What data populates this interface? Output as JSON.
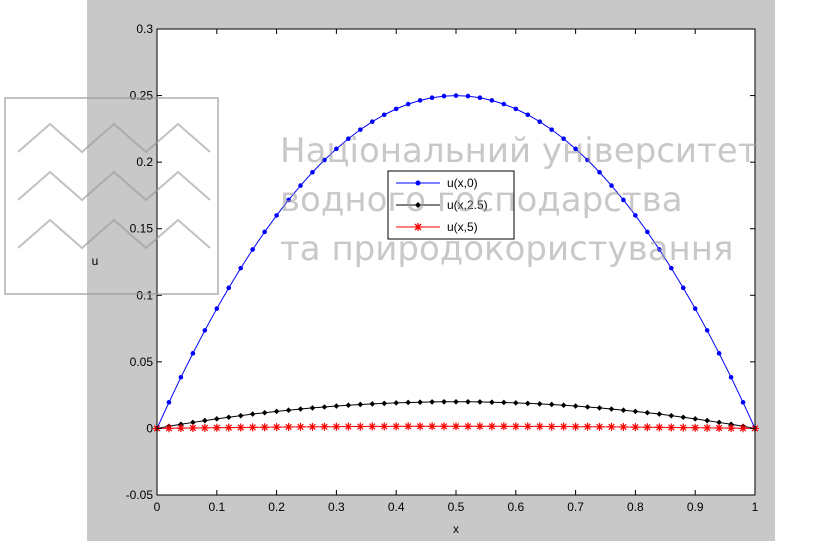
{
  "watermark": {
    "lines": [
      "Національний університет",
      "водного господарства",
      "та природокористування"
    ]
  },
  "chart_data": {
    "type": "line",
    "title": "",
    "xlabel": "x",
    "ylabel": "u",
    "xlim": [
      0,
      1
    ],
    "ylim": [
      -0.05,
      0.3
    ],
    "xticks": [
      "0",
      "0.1",
      "0.2",
      "0.3",
      "0.4",
      "0.5",
      "0.6",
      "0.7",
      "0.8",
      "0.9",
      "1"
    ],
    "yticks": [
      "-0.05",
      "0",
      "0.05",
      "0.1",
      "0.15",
      "0.2",
      "0.25",
      "0.3"
    ],
    "grid": false,
    "legend_position": "center",
    "x": [
      0,
      0.02,
      0.04,
      0.06,
      0.08,
      0.1,
      0.12,
      0.14,
      0.16,
      0.18,
      0.2,
      0.22,
      0.24,
      0.26,
      0.28,
      0.3,
      0.32,
      0.34,
      0.36,
      0.38,
      0.4,
      0.42,
      0.44,
      0.46,
      0.48,
      0.5,
      0.52,
      0.54,
      0.56,
      0.58,
      0.6,
      0.62,
      0.64,
      0.66,
      0.68,
      0.7,
      0.72,
      0.74,
      0.76,
      0.78,
      0.8,
      0.82,
      0.84,
      0.86,
      0.88,
      0.9,
      0.92,
      0.94,
      0.96,
      0.98,
      1
    ],
    "series": [
      {
        "name": "u(x,0)",
        "color": "#0000ff",
        "marker": "dot",
        "values": [
          0,
          0.0196,
          0.0384,
          0.0564,
          0.0736,
          0.09,
          0.1056,
          0.1204,
          0.1344,
          0.1476,
          0.16,
          0.1716,
          0.1824,
          0.1924,
          0.2016,
          0.21,
          0.2176,
          0.2244,
          0.2304,
          0.2356,
          0.24,
          0.2436,
          0.2464,
          0.2484,
          0.2496,
          0.25,
          0.2496,
          0.2484,
          0.2464,
          0.2436,
          0.24,
          0.2356,
          0.2304,
          0.2244,
          0.2176,
          0.21,
          0.2016,
          0.1924,
          0.1824,
          0.1716,
          0.16,
          0.1476,
          0.1344,
          0.1204,
          0.1056,
          0.09,
          0.0736,
          0.0564,
          0.0384,
          0.0196,
          0
        ]
      },
      {
        "name": "u(x,2.5)",
        "color": "#000000",
        "marker": "diamond",
        "values": [
          0,
          0.0016,
          0.0031,
          0.0045,
          0.0059,
          0.0072,
          0.0084,
          0.0096,
          0.0108,
          0.0118,
          0.0128,
          0.0137,
          0.0146,
          0.0154,
          0.0161,
          0.0168,
          0.0174,
          0.018,
          0.0184,
          0.0188,
          0.0192,
          0.0195,
          0.0197,
          0.0199,
          0.02,
          0.02,
          0.02,
          0.0199,
          0.0197,
          0.0195,
          0.0192,
          0.0188,
          0.0184,
          0.018,
          0.0174,
          0.0168,
          0.0161,
          0.0154,
          0.0146,
          0.0137,
          0.0128,
          0.0118,
          0.0108,
          0.0096,
          0.0084,
          0.0072,
          0.0059,
          0.0045,
          0.0031,
          0.0016,
          0
        ]
      },
      {
        "name": "u(x,5)",
        "color": "#ff0000",
        "marker": "asterisk",
        "values": [
          0,
          0.0001,
          0.0002,
          0.0003,
          0.0004,
          0.0005,
          0.0006,
          0.0007,
          0.0008,
          0.0009,
          0.001,
          0.0011,
          0.0012,
          0.0012,
          0.0013,
          0.0013,
          0.0014,
          0.0014,
          0.0015,
          0.0015,
          0.0015,
          0.0016,
          0.0016,
          0.0016,
          0.0016,
          0.0016,
          0.0016,
          0.0016,
          0.0016,
          0.0016,
          0.0015,
          0.0015,
          0.0015,
          0.0014,
          0.0014,
          0.0013,
          0.0013,
          0.0012,
          0.0012,
          0.0011,
          0.001,
          0.0009,
          0.0008,
          0.0007,
          0.0006,
          0.0005,
          0.0004,
          0.0003,
          0.0002,
          0.0001,
          0
        ]
      }
    ]
  }
}
